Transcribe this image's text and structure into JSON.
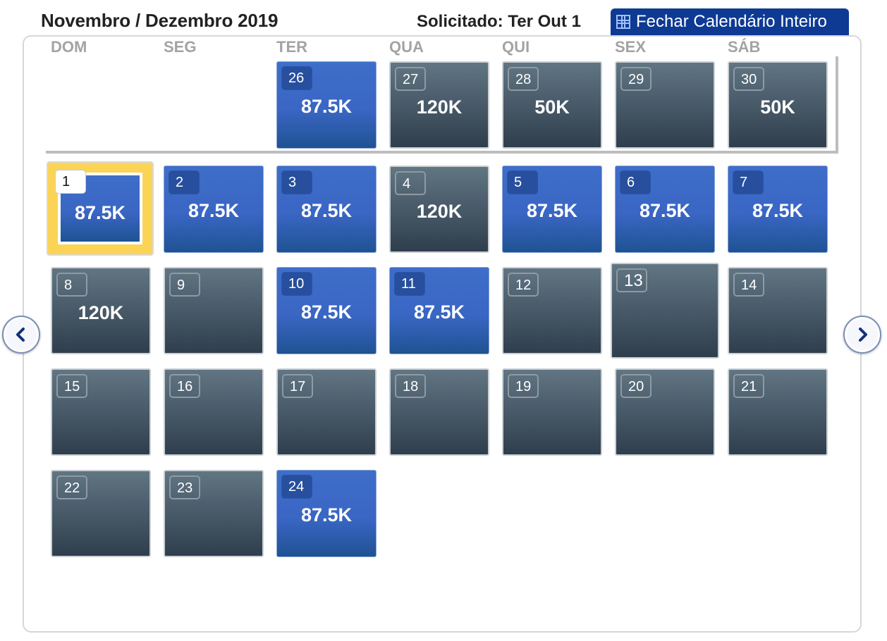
{
  "header": {
    "title": "Novembro / Dezembro 2019",
    "requested": "Solicitado: Ter Out 1",
    "close_button": "Fechar Calendário Inteiro"
  },
  "weekdays": [
    "DOM",
    "SEG",
    "TER",
    "QUA",
    "QUI",
    "SEX",
    "SÁB"
  ],
  "november": {
    "days": [
      {
        "day": "26",
        "price": "87.5K",
        "status": "blue"
      },
      {
        "day": "27",
        "price": "120K",
        "status": "grey"
      },
      {
        "day": "28",
        "price": "50K",
        "status": "grey"
      },
      {
        "day": "29",
        "price": "",
        "status": "grey"
      },
      {
        "day": "30",
        "price": "50K",
        "status": "grey"
      }
    ]
  },
  "december": {
    "days": [
      {
        "day": "1",
        "price": "87.5K",
        "status": "selected"
      },
      {
        "day": "2",
        "price": "87.5K",
        "status": "blue"
      },
      {
        "day": "3",
        "price": "87.5K",
        "status": "blue"
      },
      {
        "day": "4",
        "price": "120K",
        "status": "grey"
      },
      {
        "day": "5",
        "price": "87.5K",
        "status": "blue"
      },
      {
        "day": "6",
        "price": "87.5K",
        "status": "blue"
      },
      {
        "day": "7",
        "price": "87.5K",
        "status": "blue"
      },
      {
        "day": "8",
        "price": "120K",
        "status": "grey"
      },
      {
        "day": "9",
        "price": "",
        "status": "grey"
      },
      {
        "day": "10",
        "price": "87.5K",
        "status": "blue"
      },
      {
        "day": "11",
        "price": "87.5K",
        "status": "blue"
      },
      {
        "day": "12",
        "price": "",
        "status": "grey"
      },
      {
        "day": "13",
        "price": "",
        "status": "grey-hover"
      },
      {
        "day": "14",
        "price": "",
        "status": "grey"
      },
      {
        "day": "15",
        "price": "",
        "status": "grey"
      },
      {
        "day": "16",
        "price": "",
        "status": "grey"
      },
      {
        "day": "17",
        "price": "",
        "status": "grey"
      },
      {
        "day": "18",
        "price": "",
        "status": "grey"
      },
      {
        "day": "19",
        "price": "",
        "status": "grey"
      },
      {
        "day": "20",
        "price": "",
        "status": "grey"
      },
      {
        "day": "21",
        "price": "",
        "status": "grey"
      },
      {
        "day": "22",
        "price": "",
        "status": "grey"
      },
      {
        "day": "23",
        "price": "",
        "status": "grey"
      },
      {
        "day": "24",
        "price": "87.5K",
        "status": "blue"
      }
    ]
  },
  "colors": {
    "close_button_bg": "#0e3a93",
    "available_blue": "#3a66c4",
    "unavailable_grey": "#4a5a69",
    "selected_highlight": "#fbd456"
  },
  "nav": {
    "prev_icon": "chevron-left-icon",
    "next_icon": "chevron-right-icon"
  }
}
